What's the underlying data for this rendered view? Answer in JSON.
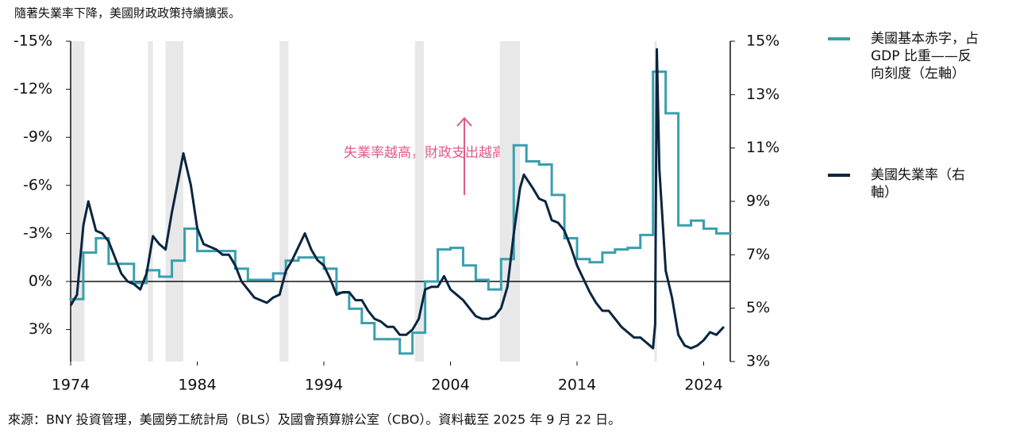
{
  "chart_data": {
    "type": "line",
    "title": "隨著失業率下降，美國財政政策持續擴張。",
    "source": "來源：BNY 投資管理，美國勞工統計局（BLS）及國會預算辦公室（CBO）。資料截至 2025 年 9 月 22 日。",
    "annotation": "失業率越高，財政支出越高",
    "xlim": [
      1974,
      2026.1
    ],
    "xticks": [
      1974,
      1984,
      1994,
      2004,
      2014,
      2024
    ],
    "ylim": [
      -15,
      5
    ],
    "y_inverted": true,
    "yticks": [
      {
        "value": -15,
        "label": "-15%"
      },
      {
        "value": -12,
        "label": "-12%"
      },
      {
        "value": -9,
        "label": "-9%"
      },
      {
        "value": -6,
        "label": "-6%"
      },
      {
        "value": -3,
        "label": "-3%"
      },
      {
        "value": 0,
        "label": "0%"
      },
      {
        "value": 3,
        "label": "3%"
      }
    ],
    "y2lim": [
      3,
      15
    ],
    "y2ticks": [
      {
        "value": 3,
        "label": "3%"
      },
      {
        "value": 5,
        "label": "5%"
      },
      {
        "value": 7,
        "label": "7%"
      },
      {
        "value": 9,
        "label": "9%"
      },
      {
        "value": 11,
        "label": "11%"
      },
      {
        "value": 13,
        "label": "13%"
      },
      {
        "value": 15,
        "label": "15%"
      }
    ],
    "recessions": [
      [
        1974,
        1975.1
      ],
      [
        1980.1,
        1980.5
      ],
      [
        1981.5,
        1982.9
      ],
      [
        1990.5,
        1991.2
      ],
      [
        2001.2,
        2001.9
      ],
      [
        2007.9,
        2009.5
      ],
      [
        2020.1,
        2020.3
      ]
    ],
    "recession_color": "#e8e8e8",
    "series": [
      {
        "name": "美國基本赤字，占 GDP 比重——反向刻度（左軸）",
        "color": "#3a9fae",
        "step": true,
        "x": [
          1974,
          1975,
          1976,
          1977,
          1978,
          1979,
          1980,
          1981,
          1982,
          1983,
          1984,
          1985,
          1986,
          1987,
          1988,
          1989,
          1990,
          1991,
          1992,
          1993,
          1994,
          1995,
          1996,
          1997,
          1998,
          1999,
          2000,
          2001,
          2002,
          2003,
          2004,
          2005,
          2006,
          2007,
          2008,
          2009,
          2010,
          2011,
          2012,
          2013,
          2014,
          2015,
          2016,
          2017,
          2018,
          2019,
          2020,
          2021,
          2022,
          2023,
          2024,
          2025
        ],
        "values": [
          1.1,
          -1.8,
          -2.7,
          -1.1,
          -1.1,
          0.1,
          -0.7,
          -0.3,
          -1.3,
          -3.3,
          -1.9,
          -1.9,
          -1.9,
          -0.8,
          -0.1,
          -0.1,
          -0.5,
          -1.3,
          -1.5,
          -1.5,
          -0.8,
          0.7,
          1.7,
          2.6,
          3.6,
          3.6,
          4.5,
          3.2,
          0.0,
          -2.0,
          -2.1,
          -1.0,
          -0.1,
          0.5,
          -1.4,
          -8.5,
          -7.5,
          -7.3,
          -5.4,
          -2.7,
          -1.4,
          -1.2,
          -1.8,
          -2.0,
          -2.1,
          -2.9,
          -13.1,
          -10.5,
          -3.5,
          -3.8,
          -3.3,
          -3.0
        ]
      },
      {
        "name": "美國失業率（右軸）",
        "color": "#0b2540",
        "axis": "y2",
        "x": [
          1974,
          1974.5,
          1975,
          1975.4,
          1976,
          1976.5,
          1977,
          1977.5,
          1978,
          1978.5,
          1979,
          1979.5,
          1980,
          1980.5,
          1981,
          1981.5,
          1982,
          1982.5,
          1982.9,
          1983.5,
          1984,
          1984.5,
          1985,
          1985.5,
          1986,
          1986.5,
          1987,
          1987.5,
          1988,
          1988.5,
          1989,
          1989.5,
          1990,
          1990.5,
          1991,
          1991.5,
          1992,
          1992.5,
          1993,
          1993.5,
          1994,
          1994.5,
          1995,
          1995.5,
          1996,
          1996.5,
          1997,
          1997.5,
          1998,
          1998.5,
          1999,
          1999.5,
          2000,
          2000.5,
          2001,
          2001.5,
          2002,
          2002.5,
          2003,
          2003.5,
          2004,
          2004.5,
          2005,
          2005.5,
          2006,
          2006.5,
          2007,
          2007.5,
          2008,
          2008.5,
          2009,
          2009.5,
          2009.8,
          2010.5,
          2011,
          2011.5,
          2012,
          2012.5,
          2013,
          2013.5,
          2014,
          2014.5,
          2015,
          2015.5,
          2016,
          2016.5,
          2017,
          2017.5,
          2018,
          2018.5,
          2019,
          2019.5,
          2020,
          2020.17,
          2020.3,
          2020.5,
          2021,
          2021.5,
          2022,
          2022.5,
          2023,
          2023.5,
          2024,
          2024.5,
          2025,
          2025.6
        ],
        "values": [
          5.1,
          5.5,
          8.1,
          9.0,
          7.9,
          7.8,
          7.5,
          6.9,
          6.3,
          6.0,
          5.9,
          5.7,
          6.3,
          7.7,
          7.4,
          7.2,
          8.6,
          9.8,
          10.8,
          9.6,
          8.0,
          7.4,
          7.3,
          7.2,
          7.0,
          7.0,
          6.6,
          6.0,
          5.7,
          5.4,
          5.3,
          5.2,
          5.4,
          5.5,
          6.4,
          6.8,
          7.3,
          7.8,
          7.2,
          6.8,
          6.6,
          6.1,
          5.5,
          5.6,
          5.6,
          5.3,
          5.3,
          4.9,
          4.6,
          4.5,
          4.3,
          4.3,
          4.0,
          4.0,
          4.2,
          4.6,
          5.7,
          5.8,
          5.8,
          6.2,
          5.7,
          5.5,
          5.3,
          5.0,
          4.7,
          4.6,
          4.6,
          4.7,
          5.0,
          5.8,
          7.8,
          9.5,
          10.0,
          9.5,
          9.1,
          9.0,
          8.3,
          8.2,
          7.9,
          7.3,
          6.6,
          6.1,
          5.6,
          5.2,
          4.9,
          4.9,
          4.6,
          4.3,
          4.1,
          3.9,
          3.9,
          3.7,
          3.5,
          4.4,
          14.7,
          10.2,
          6.4,
          5.4,
          4.0,
          3.6,
          3.5,
          3.6,
          3.8,
          4.1,
          4.0,
          4.3
        ]
      }
    ]
  }
}
